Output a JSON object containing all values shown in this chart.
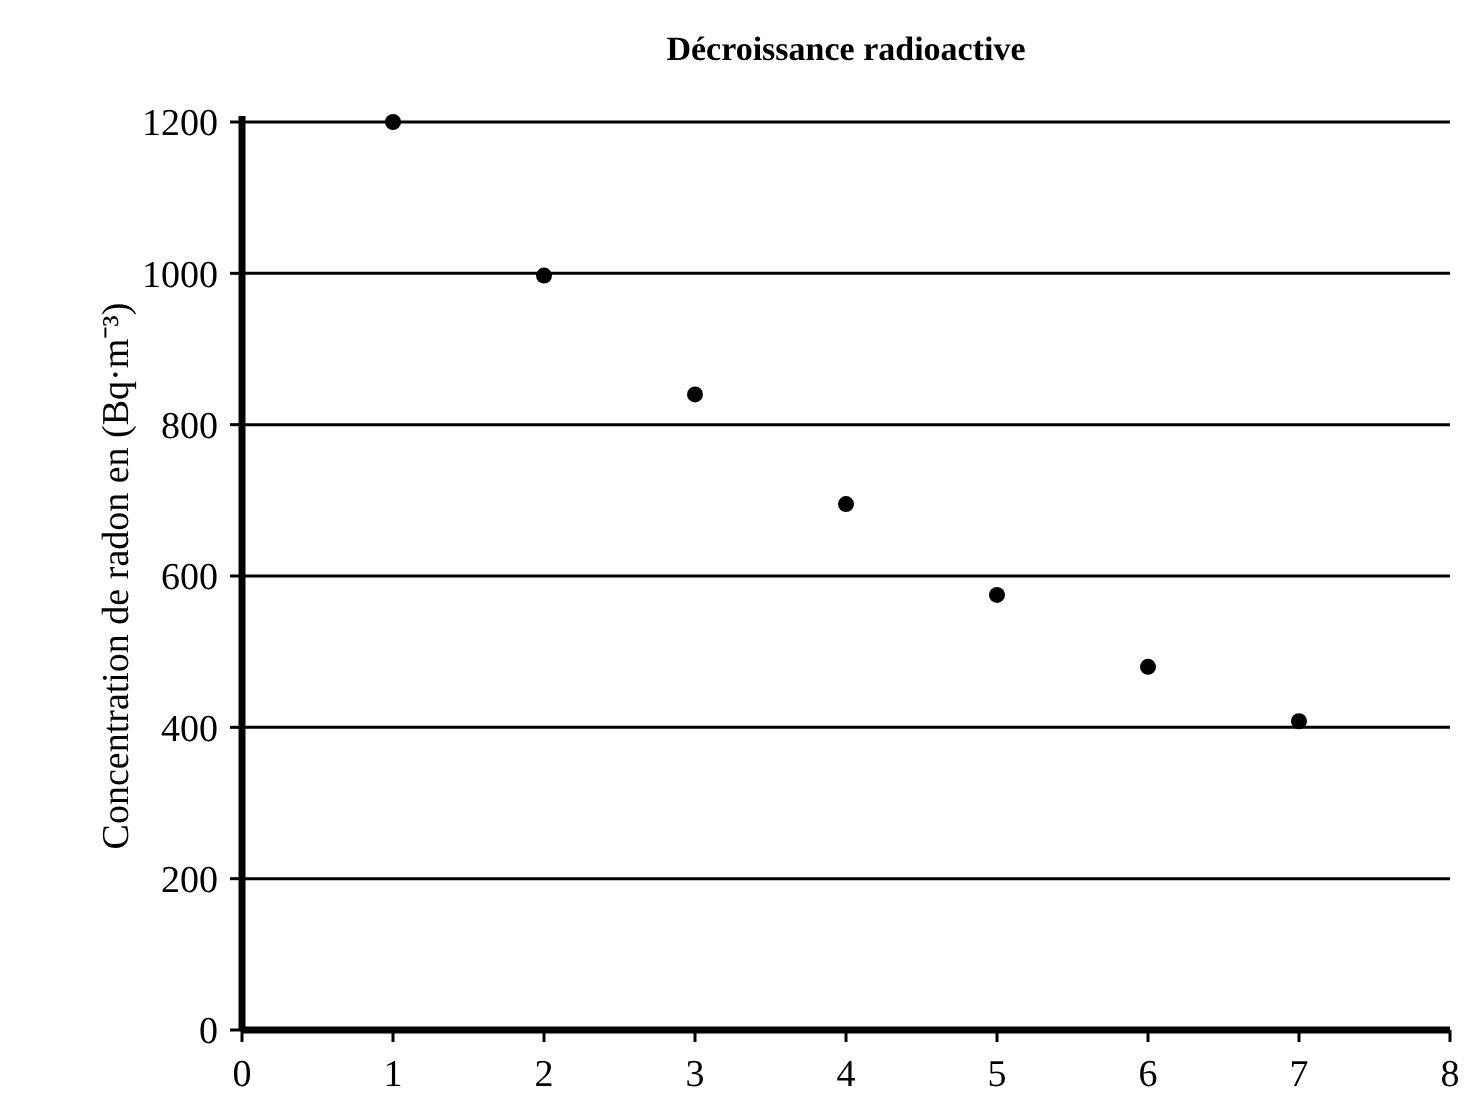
{
  "chart_data": {
    "type": "scatter",
    "title": "Décroissance radioactive",
    "ylabel": "Concentration de radon en (Bq·m⁻³)",
    "x": [
      1,
      2,
      3,
      4,
      5,
      6,
      7
    ],
    "values": [
      1200,
      997,
      840,
      695,
      575,
      480,
      408
    ],
    "color": "#000000",
    "marker": "circle",
    "grid": "y",
    "xlim": [
      0,
      8
    ],
    "xticks": [
      0,
      1,
      2,
      3,
      4,
      5,
      6,
      7,
      8
    ],
    "ylim": [
      0,
      1200
    ],
    "yticks": [
      0,
      200,
      400,
      600,
      800,
      1000,
      1200
    ]
  }
}
